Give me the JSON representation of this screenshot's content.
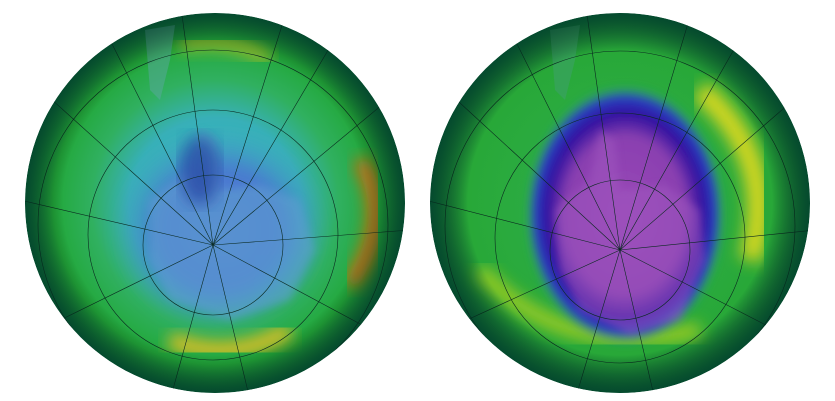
{
  "globes": [
    {
      "id": "left",
      "hole_color": "#3f6fd0",
      "ring_color": "#e8c020"
    },
    {
      "id": "right",
      "hole_color": "#2a0a9a",
      "core_color": "#8a3fb0",
      "ring_color": "#d8d820"
    }
  ],
  "colors": {
    "background": "#ffffff",
    "ocean_green": "#1ea83a",
    "grid": "#0a2a20"
  }
}
